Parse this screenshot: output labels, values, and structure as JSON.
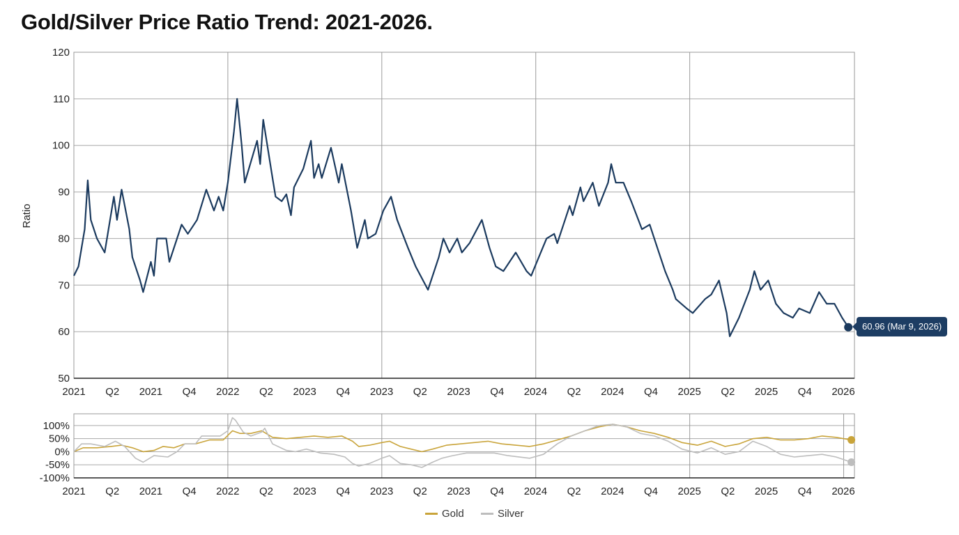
{
  "title": "Gold/Silver Price Ratio Trend: 2021-2026.",
  "colors": {
    "ratio": "#1b3a5e",
    "gold": "#c9a43a",
    "silver": "#bdbdbd",
    "grid": "#9a9a9a"
  },
  "tooltip": "60.96 (Mar 9, 2026)",
  "legend": [
    {
      "label": "Gold",
      "color": "#c9a43a"
    },
    {
      "label": "Silver",
      "color": "#bdbdbd"
    }
  ],
  "chart_data": [
    {
      "type": "line",
      "title": "Gold/Silver Price Ratio Trend: 2021-2026.",
      "ylabel": "Ratio",
      "xlabel": "",
      "xlim": [
        2021.0,
        2026.07
      ],
      "ylim": [
        50,
        120
      ],
      "yticks": [
        "50",
        "60",
        "70",
        "80",
        "90",
        "100",
        "110",
        "120"
      ],
      "ytick_values": [
        50,
        60,
        70,
        80,
        90,
        100,
        110,
        120
      ],
      "xtick_labels": [
        "2021",
        "Q2",
        "2021",
        "Q4",
        "2022",
        "Q2",
        "2023",
        "Q4",
        "2023",
        "Q2",
        "2023",
        "Q4",
        "2024",
        "Q2",
        "2024",
        "Q4",
        "2025",
        "Q2",
        "2025",
        "Q4",
        "2026"
      ],
      "xgrid_years": [
        2022,
        2023,
        2024,
        2025
      ],
      "grid": true,
      "series": [
        {
          "name": "Ratio",
          "x": [
            2021.0,
            2021.03,
            2021.07,
            2021.09,
            2021.11,
            2021.15,
            2021.2,
            2021.26,
            2021.28,
            2021.31,
            2021.36,
            2021.38,
            2021.43,
            2021.45,
            2021.5,
            2021.52,
            2021.54,
            2021.6,
            2021.62,
            2021.7,
            2021.74,
            2021.8,
            2021.86,
            2021.91,
            2021.94,
            2021.97,
            2022.0,
            2022.04,
            2022.06,
            2022.09,
            2022.11,
            2022.19,
            2022.21,
            2022.23,
            2022.29,
            2022.31,
            2022.35,
            2022.38,
            2022.41,
            2022.43,
            2022.49,
            2022.54,
            2022.56,
            2022.59,
            2022.61,
            2022.67,
            2022.72,
            2022.74,
            2022.8,
            2022.84,
            2022.89,
            2022.91,
            2022.96,
            2023.01,
            2023.06,
            2023.1,
            2023.17,
            2023.22,
            2023.3,
            2023.37,
            2023.4,
            2023.44,
            2023.49,
            2023.52,
            2023.57,
            2023.65,
            2023.7,
            2023.74,
            2023.79,
            2023.87,
            2023.94,
            2023.97,
            2024.02,
            2024.07,
            2024.12,
            2024.14,
            2024.19,
            2024.22,
            2024.24,
            2024.29,
            2024.31,
            2024.37,
            2024.41,
            2024.47,
            2024.49,
            2024.52,
            2024.57,
            2024.62,
            2024.69,
            2024.74,
            2024.79,
            2024.84,
            2024.89,
            2024.91,
            2024.98,
            2025.02,
            2025.1,
            2025.14,
            2025.19,
            2025.24,
            2025.26,
            2025.32,
            2025.39,
            2025.42,
            2025.46,
            2025.51,
            2025.56,
            2025.61,
            2025.67,
            2025.71,
            2025.78,
            2025.84,
            2025.89,
            2025.94,
            2025.99,
            2026.03
          ],
          "y": [
            72,
            74,
            82,
            92.5,
            84,
            80,
            77,
            89,
            84,
            90.5,
            82,
            76,
            71,
            68.5,
            75,
            72,
            80,
            80,
            75,
            83,
            81,
            84,
            90.5,
            86,
            89,
            86,
            92,
            103,
            110,
            100,
            92,
            101,
            96,
            105.5,
            93,
            89,
            88,
            89.5,
            85,
            91,
            95,
            101,
            93,
            96,
            93,
            99.5,
            92,
            96,
            86,
            78,
            84,
            80,
            81,
            86,
            89,
            84,
            78,
            74,
            69,
            76,
            80,
            77,
            80,
            77,
            79,
            84,
            78,
            74,
            73,
            77,
            73,
            72,
            76,
            80,
            81,
            79,
            84,
            87,
            85,
            91,
            88,
            92,
            87,
            92,
            96,
            92,
            92,
            88,
            82,
            83,
            78,
            73,
            69,
            67,
            65,
            64,
            67,
            68,
            71,
            64,
            59,
            63,
            69,
            73,
            69,
            71,
            66,
            64,
            63,
            65,
            64,
            68.5,
            66,
            66,
            63,
            60.96
          ]
        }
      ],
      "last_point": {
        "value": 60.96,
        "date": "Mar 9, 2026"
      }
    },
    {
      "type": "line",
      "title": "",
      "ylabel": "",
      "xlim": [
        2021.0,
        2026.07
      ],
      "ylim": [
        -100,
        145
      ],
      "yticks": [
        "100%",
        "50%",
        "0%",
        "-50%",
        "-100%"
      ],
      "ytick_values": [
        100,
        50,
        0,
        -50,
        -100
      ],
      "xtick_labels": [
        "2021",
        "Q2",
        "2021",
        "Q4",
        "2022",
        "Q2",
        "2023",
        "Q4",
        "2023",
        "Q2",
        "2023",
        "Q4",
        "2024",
        "Q2",
        "2024",
        "Q4",
        "2025",
        "Q2",
        "2025",
        "Q4",
        "2026"
      ],
      "xgrid_years": [
        2022,
        2023,
        2024,
        2025,
        2026
      ],
      "grid": true,
      "legend_position": "bottom-center",
      "series": [
        {
          "name": "Gold",
          "x": [
            2021.0,
            2021.06,
            2021.15,
            2021.24,
            2021.31,
            2021.38,
            2021.45,
            2021.52,
            2021.58,
            2021.65,
            2021.72,
            2021.79,
            2021.88,
            2021.97,
            2022.03,
            2022.08,
            2022.15,
            2022.22,
            2022.29,
            2022.38,
            2022.47,
            2022.56,
            2022.65,
            2022.74,
            2022.81,
            2022.85,
            2022.92,
            2023.0,
            2023.05,
            2023.12,
            2023.19,
            2023.26,
            2023.33,
            2023.42,
            2023.51,
            2023.6,
            2023.69,
            2023.78,
            2023.87,
            2023.96,
            2024.05,
            2024.14,
            2024.23,
            2024.32,
            2024.41,
            2024.5,
            2024.59,
            2024.68,
            2024.77,
            2024.86,
            2024.95,
            2025.05,
            2025.14,
            2025.23,
            2025.32,
            2025.41,
            2025.5,
            2025.59,
            2025.68,
            2025.77,
            2025.86,
            2025.95,
            2026.05
          ],
          "y": [
            0,
            15,
            15,
            20,
            25,
            15,
            0,
            5,
            20,
            15,
            30,
            30,
            45,
            45,
            80,
            70,
            70,
            80,
            55,
            50,
            55,
            60,
            55,
            60,
            40,
            20,
            25,
            35,
            40,
            20,
            10,
            0,
            10,
            25,
            30,
            35,
            40,
            30,
            25,
            20,
            30,
            45,
            60,
            80,
            95,
            105,
            95,
            80,
            70,
            55,
            35,
            25,
            40,
            20,
            30,
            50,
            55,
            45,
            45,
            50,
            60,
            55,
            45
          ]
        },
        {
          "name": "Silver",
          "x": [
            2021.0,
            2021.05,
            2021.11,
            2021.2,
            2021.27,
            2021.33,
            2021.4,
            2021.45,
            2021.52,
            2021.61,
            2021.67,
            2021.72,
            2021.79,
            2021.83,
            2021.88,
            2021.95,
            2022.0,
            2022.03,
            2022.05,
            2022.1,
            2022.15,
            2022.22,
            2022.24,
            2022.29,
            2022.38,
            2022.44,
            2022.51,
            2022.6,
            2022.69,
            2022.76,
            2022.81,
            2022.85,
            2022.92,
            2023.0,
            2023.05,
            2023.12,
            2023.19,
            2023.26,
            2023.33,
            2023.39,
            2023.46,
            2023.55,
            2023.64,
            2023.73,
            2023.82,
            2023.96,
            2024.05,
            2024.14,
            2024.23,
            2024.32,
            2024.41,
            2024.5,
            2024.59,
            2024.68,
            2024.77,
            2024.86,
            2024.95,
            2025.05,
            2025.14,
            2025.23,
            2025.32,
            2025.41,
            2025.5,
            2025.59,
            2025.68,
            2025.77,
            2025.86,
            2025.95,
            2026.05
          ],
          "y": [
            0,
            30,
            30,
            20,
            40,
            20,
            -25,
            -40,
            -15,
            -20,
            0,
            30,
            30,
            60,
            60,
            60,
            80,
            130,
            120,
            75,
            60,
            75,
            90,
            30,
            5,
            0,
            10,
            -5,
            -10,
            -20,
            -45,
            -55,
            -45,
            -25,
            -15,
            -45,
            -50,
            -60,
            -40,
            -25,
            -15,
            -5,
            -5,
            -5,
            -15,
            -25,
            -10,
            30,
            60,
            80,
            100,
            105,
            95,
            70,
            60,
            40,
            10,
            -5,
            15,
            -10,
            0,
            40,
            20,
            -10,
            -20,
            -15,
            -10,
            -20,
            -40
          ]
        }
      ]
    }
  ]
}
